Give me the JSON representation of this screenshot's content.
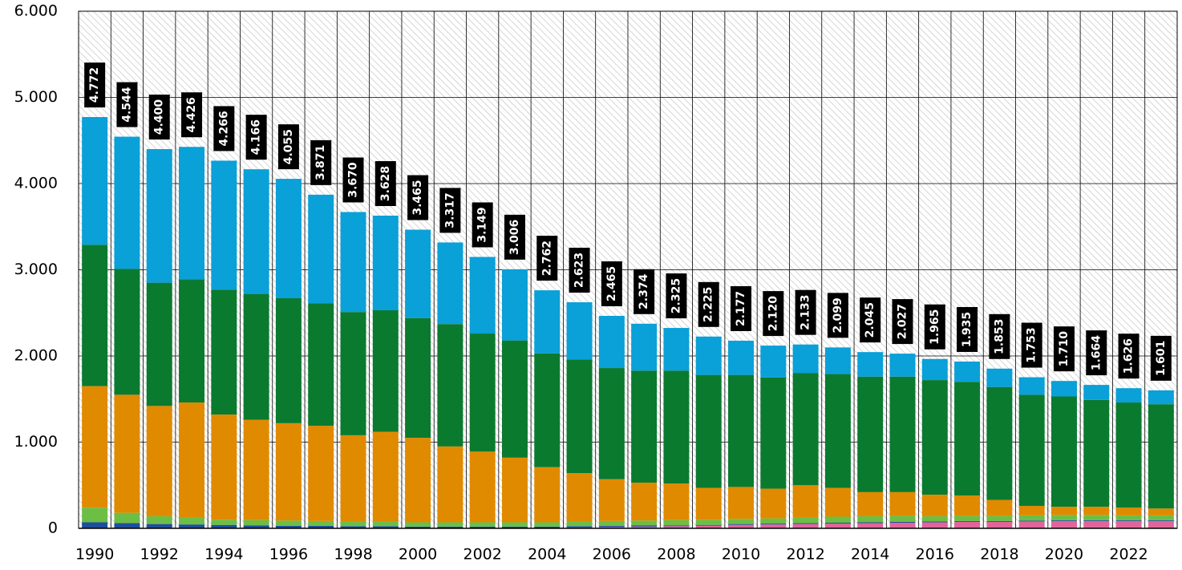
{
  "chart_data": {
    "type": "stacked_bar",
    "categories": [
      "1990",
      null,
      "1992",
      null,
      "1994",
      null,
      "1996",
      null,
      "1998",
      null,
      "2000",
      null,
      "2002",
      null,
      "2004",
      null,
      "2006",
      null,
      "2008",
      null,
      "2010",
      null,
      "2012",
      null,
      "2014",
      null,
      "2016",
      null,
      "2018",
      null,
      "2020",
      null,
      "2022",
      null
    ],
    "series": [
      {
        "color": "#e0659a",
        "values": [
          0,
          0,
          0,
          0,
          0,
          0,
          0,
          0,
          0,
          0,
          0,
          0,
          0,
          0,
          0,
          10,
          15,
          20,
          25,
          30,
          40,
          45,
          50,
          55,
          60,
          65,
          70,
          75,
          75,
          80,
          85,
          85,
          85,
          85
        ]
      },
      {
        "color": "#1f4e9c",
        "values": [
          70,
          60,
          50,
          45,
          40,
          35,
          30,
          30,
          25,
          25,
          20,
          20,
          20,
          20,
          20,
          15,
          15,
          15,
          10,
          10,
          10,
          10,
          10,
          10,
          10,
          10,
          10,
          10,
          10,
          10,
          10,
          10,
          10,
          10
        ]
      },
      {
        "color": "#6dbe45",
        "values": [
          170,
          120,
          90,
          85,
          60,
          60,
          60,
          55,
          50,
          50,
          50,
          50,
          50,
          50,
          50,
          50,
          55,
          55,
          60,
          60,
          60,
          60,
          70,
          70,
          70,
          70,
          60,
          60,
          60,
          60,
          60,
          60,
          55,
          55
        ]
      },
      {
        "color": "#e08a00",
        "values": [
          1410,
          1370,
          1280,
          1330,
          1220,
          1165,
          1130,
          1105,
          1005,
          1045,
          980,
          880,
          820,
          750,
          640,
          565,
          485,
          440,
          425,
          370,
          370,
          345,
          370,
          335,
          280,
          275,
          250,
          235,
          185,
          110,
          95,
          95,
          90,
          80
        ]
      },
      {
        "color": "#0a7a2f",
        "values": [
          1640,
          1460,
          1430,
          1430,
          1450,
          1460,
          1450,
          1420,
          1430,
          1410,
          1390,
          1420,
          1370,
          1360,
          1320,
          1320,
          1290,
          1300,
          1310,
          1310,
          1300,
          1290,
          1300,
          1320,
          1340,
          1340,
          1330,
          1320,
          1310,
          1290,
          1280,
          1240,
          1220,
          1210
        ]
      },
      {
        "color": "#0aa0d8",
        "values": [
          1482,
          1534,
          1550,
          1536,
          1496,
          1446,
          1385,
          1261,
          1160,
          1098,
          1025,
          947,
          889,
          826,
          732,
          663,
          605,
          544,
          495,
          445,
          397,
          370,
          333,
          309,
          285,
          267,
          245,
          235,
          213,
          203,
          180,
          174,
          166,
          161
        ]
      }
    ],
    "totals": {
      "values": [
        4772,
        4544,
        4400,
        4426,
        4266,
        4166,
        4055,
        3871,
        3670,
        3628,
        3465,
        3317,
        3149,
        3006,
        2762,
        2623,
        2465,
        2374,
        2325,
        2225,
        2177,
        2120,
        2133,
        2099,
        2045,
        2027,
        1965,
        1935,
        1853,
        1753,
        1710,
        1664,
        1626,
        1601
      ],
      "value_labels": [
        "4.772",
        "4.544",
        "4.400",
        "4.426",
        "4.266",
        "4.166",
        "4.055",
        "3.871",
        "3.670",
        "3.628",
        "3.465",
        "3.317",
        "3.149",
        "3.006",
        "2.762",
        "2.623",
        "2.465",
        "2.374",
        "2.325",
        "2.225",
        "2.177",
        "2.120",
        "2.133",
        "2.099",
        "2.045",
        "2.027",
        "1.965",
        "1.935",
        "1.853",
        "1.753",
        "1.710",
        "1.664",
        "1.626",
        "1.601"
      ]
    },
    "ylim": [
      0,
      6000
    ],
    "yticks": [
      0,
      {
        "value": 1000,
        "label": "1.000"
      },
      {
        "value": 2000,
        "label": "2.000"
      },
      {
        "value": 3000,
        "label": "3.000"
      },
      {
        "value": 4000,
        "label": "4.000"
      },
      {
        "value": 5000,
        "label": "5.000"
      },
      {
        "value": 6000,
        "label": "6.000"
      }
    ],
    "grid": true
  }
}
